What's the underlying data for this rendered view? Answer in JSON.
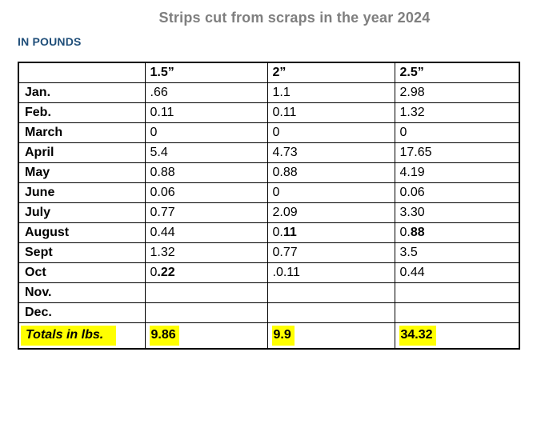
{
  "page": {
    "title": "Strips cut from scraps in the year 2024",
    "subtitle": "IN POUNDS"
  },
  "colors": {
    "title_gray": "#7f7f7f",
    "subtitle_blue": "#1f4e79",
    "highlight_yellow": "#ffff00",
    "table_border": "#000000"
  },
  "table": {
    "columns": [
      "",
      "1.5”",
      "2”",
      "2.5”"
    ],
    "rows": [
      {
        "month": "Jan.",
        "values": [
          ".66",
          "1.1",
          "2.98"
        ]
      },
      {
        "month": "Feb.",
        "values": [
          "0.11",
          "0.11",
          "1.32"
        ]
      },
      {
        "month": "March",
        "values": [
          "0",
          "0",
          "0"
        ]
      },
      {
        "month": "April",
        "values": [
          "5.4",
          "4.73",
          "17.65"
        ]
      },
      {
        "month": "May",
        "values": [
          "0.88",
          "0.88",
          "4.19"
        ]
      },
      {
        "month": "June",
        "values": [
          "0.06",
          "0",
          "0.06"
        ]
      },
      {
        "month": "July",
        "values": [
          "0.77",
          "2.09",
          "3.30"
        ]
      },
      {
        "month": "August",
        "values": [
          "0.44",
          {
            "pre": "0.",
            "bold": "11"
          },
          {
            "pre": "0.",
            "bold": "88"
          }
        ]
      },
      {
        "month": "Sept",
        "values": [
          "1.32",
          "0.77",
          "3.5"
        ]
      },
      {
        "month": "Oct",
        "values": [
          {
            "pre": "0",
            "bold": ".22"
          },
          ".0.11",
          "0.44"
        ]
      },
      {
        "month": "Nov.",
        "values": [
          "",
          "",
          ""
        ]
      },
      {
        "month": "Dec.",
        "values": [
          "",
          "",
          ""
        ]
      }
    ],
    "totals": {
      "label": "Totals in lbs.",
      "values": [
        "9.86",
        "9.9",
        "34.32"
      ]
    }
  }
}
